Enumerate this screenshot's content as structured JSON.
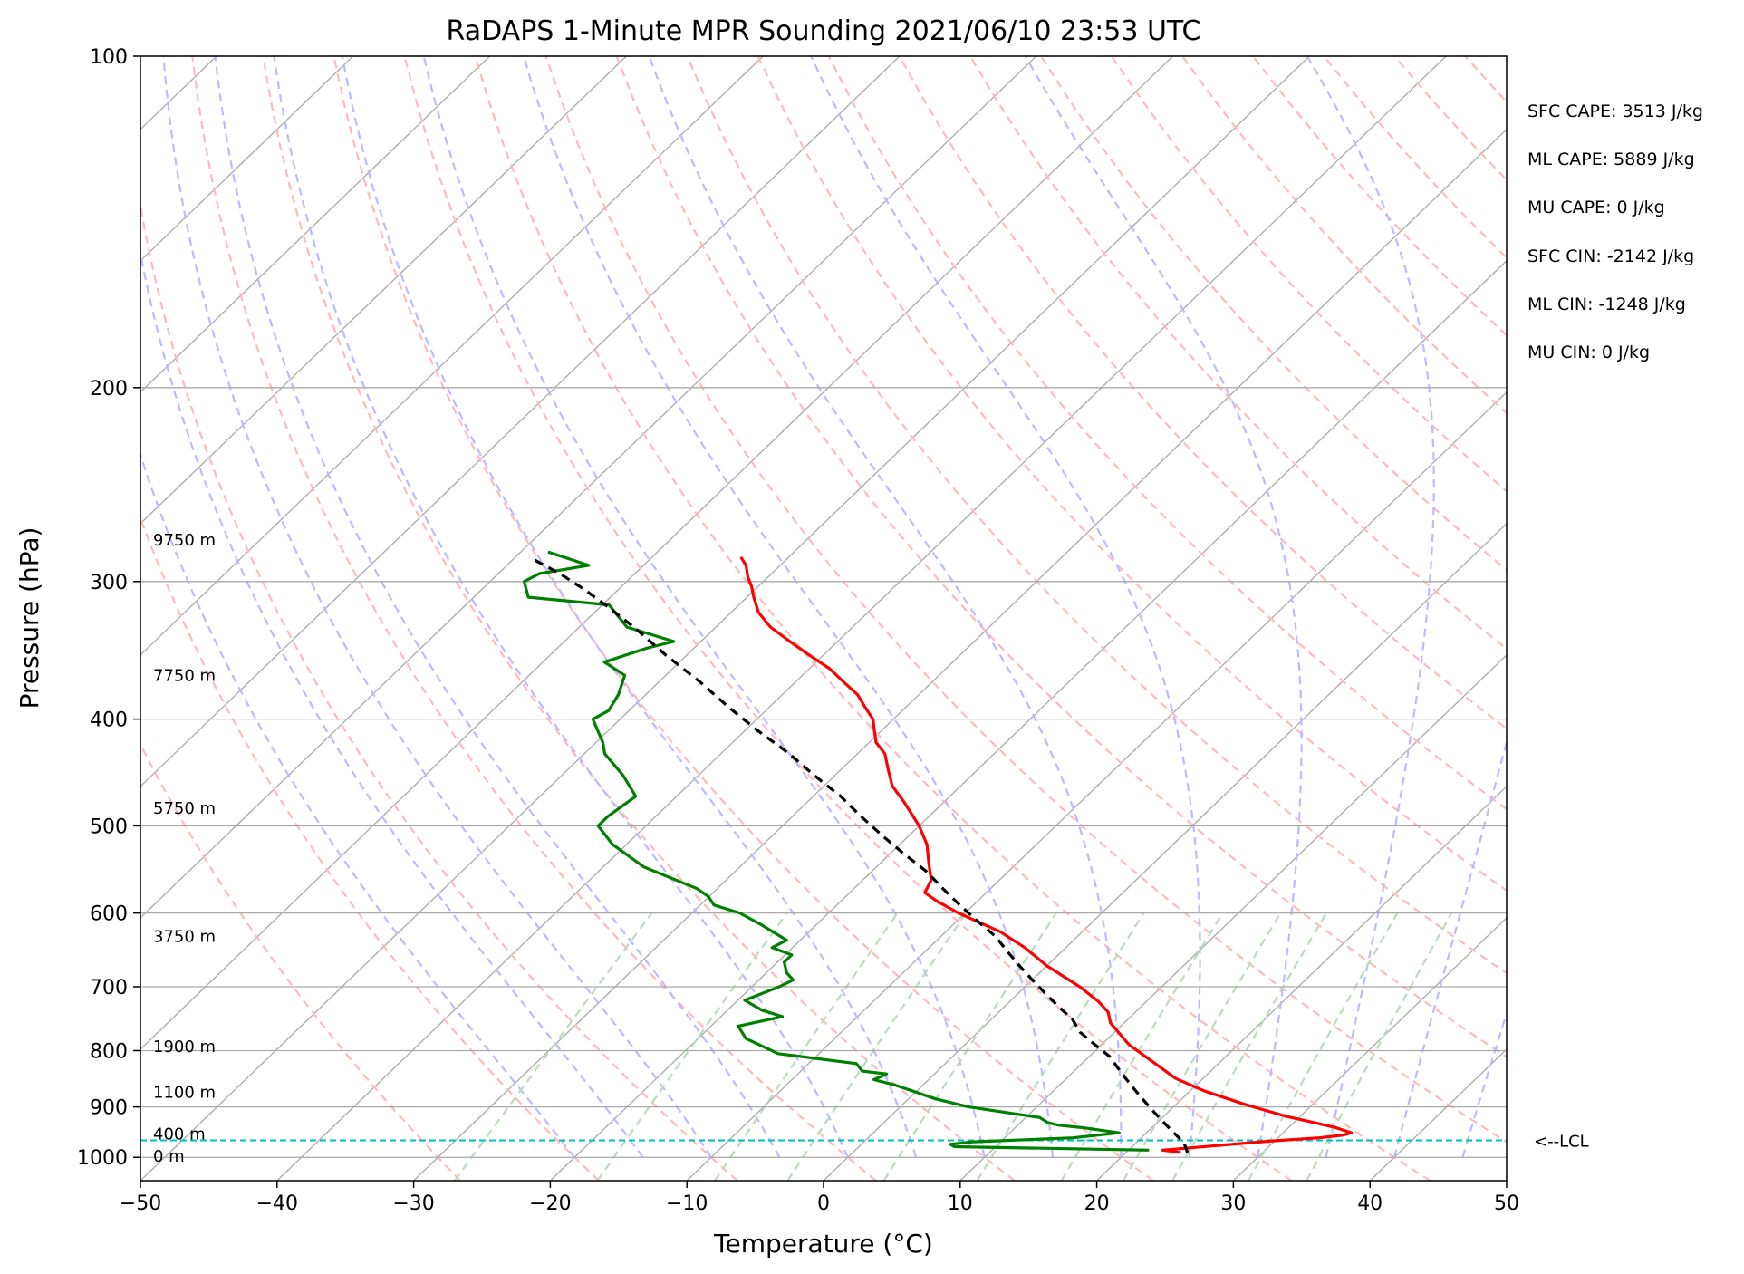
{
  "chart_data": {
    "type": "line",
    "title": "RaDAPS 1-Minute MPR Sounding 2021/06/10 23:53 UTC",
    "xlabel": "Temperature (°C)",
    "ylabel": "Pressure (hPa)",
    "xlim": [
      -50,
      50
    ],
    "ylim": [
      1050,
      100
    ],
    "y_scale": "log",
    "skew_t": true,
    "grid": true,
    "x_ticks": [
      -50,
      -40,
      -30,
      -20,
      -10,
      0,
      10,
      20,
      30,
      40,
      50
    ],
    "x_tick_labels": [
      "−50",
      "−40",
      "−30",
      "−20",
      "−10",
      "0",
      "10",
      "20",
      "30",
      "40",
      "50"
    ],
    "y_ticks": [
      100,
      200,
      300,
      400,
      500,
      600,
      700,
      800,
      900,
      1000
    ],
    "y_tick_labels": [
      "100",
      "200",
      "300",
      "400",
      "500",
      "600",
      "700",
      "800",
      "900",
      "1000"
    ],
    "series": [
      {
        "role": "temperature",
        "color": "#ff0000",
        "points": [
          [
            24.0,
            990
          ],
          [
            22.5,
            985
          ],
          [
            29.5,
            967
          ],
          [
            33.0,
            960
          ],
          [
            34.5,
            955
          ],
          [
            35.0,
            950
          ],
          [
            33.5,
            940
          ],
          [
            31.5,
            930
          ],
          [
            29.0,
            918
          ],
          [
            25.0,
            895
          ],
          [
            21.0,
            870
          ],
          [
            18.0,
            848
          ],
          [
            12.0,
            790
          ],
          [
            9.0,
            755
          ],
          [
            8.0,
            738
          ],
          [
            6.5,
            722
          ],
          [
            4.0,
            700
          ],
          [
            0.0,
            670
          ],
          [
            -3.0,
            645
          ],
          [
            -6.0,
            624
          ],
          [
            -10.5,
            600
          ],
          [
            -13.0,
            585
          ],
          [
            -14.5,
            575
          ],
          [
            -15.0,
            560
          ],
          [
            -16.5,
            540
          ],
          [
            -18.0,
            520
          ],
          [
            -20.0,
            500
          ],
          [
            -23.0,
            475
          ],
          [
            -25.0,
            460
          ],
          [
            -26.5,
            445
          ],
          [
            -28.0,
            430
          ],
          [
            -29.5,
            420
          ],
          [
            -30.5,
            410
          ],
          [
            -31.5,
            400
          ],
          [
            -33.0,
            390
          ],
          [
            -34.5,
            380
          ],
          [
            -36.5,
            370
          ],
          [
            -38.5,
            360
          ],
          [
            -41.0,
            350
          ],
          [
            -43.5,
            340
          ],
          [
            -46.0,
            330
          ],
          [
            -48.0,
            320
          ],
          [
            -49.5,
            310
          ],
          [
            -50.5,
            303
          ],
          [
            -51.5,
            297
          ],
          [
            -52.5,
            290
          ],
          [
            -53.5,
            285
          ]
        ]
      },
      {
        "role": "dewpoint",
        "color": "#008000",
        "points": [
          [
            21.5,
            985
          ],
          [
            7.0,
            978
          ],
          [
            6.5,
            973
          ],
          [
            8.0,
            968
          ],
          [
            15.0,
            960
          ],
          [
            18.0,
            950
          ],
          [
            15.0,
            940
          ],
          [
            13.0,
            935
          ],
          [
            12.0,
            930
          ],
          [
            11.0,
            920
          ],
          [
            5.0,
            900
          ],
          [
            2.0,
            885
          ],
          [
            -2.0,
            860
          ],
          [
            -4.0,
            850
          ],
          [
            -3.5,
            840
          ],
          [
            -5.5,
            835
          ],
          [
            -6.5,
            822
          ],
          [
            -13.0,
            805
          ],
          [
            -16.5,
            780
          ],
          [
            -18.0,
            760
          ],
          [
            -15.5,
            745
          ],
          [
            -17.5,
            735
          ],
          [
            -19.5,
            720
          ],
          [
            -18.0,
            700
          ],
          [
            -17.5,
            690
          ],
          [
            -18.5,
            680
          ],
          [
            -19.5,
            665
          ],
          [
            -19.5,
            655
          ],
          [
            -21.5,
            645
          ],
          [
            -21.0,
            635
          ],
          [
            -24.0,
            615
          ],
          [
            -26.5,
            600
          ],
          [
            -29.0,
            590
          ],
          [
            -30.0,
            580
          ],
          [
            -31.5,
            570
          ],
          [
            -37.0,
            545
          ],
          [
            -41.0,
            520
          ],
          [
            -43.5,
            500
          ],
          [
            -43.5,
            490
          ],
          [
            -43.0,
            470
          ],
          [
            -45.5,
            450
          ],
          [
            -48.5,
            430
          ],
          [
            -49.5,
            420
          ],
          [
            -52.0,
            400
          ],
          [
            -51.5,
            393
          ],
          [
            -52.0,
            380
          ],
          [
            -53.0,
            365
          ],
          [
            -55.5,
            355
          ],
          [
            -53.5,
            345
          ],
          [
            -52.0,
            340
          ],
          [
            -56.5,
            330
          ],
          [
            -58.5,
            320
          ],
          [
            -59.5,
            315
          ],
          [
            -66.0,
            310
          ],
          [
            -67.5,
            300
          ],
          [
            -67.0,
            295
          ],
          [
            -64.0,
            290
          ],
          [
            -68.0,
            282
          ]
        ]
      },
      {
        "role": "parcel",
        "color": "#000000",
        "style": "dashed",
        "points": [
          [
            24.5,
            990
          ],
          [
            23.5,
            970
          ],
          [
            22.0,
            950
          ],
          [
            20.5,
            930
          ],
          [
            19.0,
            910
          ],
          [
            17.5,
            890
          ],
          [
            16.0,
            870
          ],
          [
            14.5,
            850
          ],
          [
            13.0,
            830
          ],
          [
            11.5,
            810
          ],
          [
            9.5,
            790
          ],
          [
            7.5,
            770
          ],
          [
            6.0,
            750
          ],
          [
            4.0,
            730
          ],
          [
            2.0,
            710
          ],
          [
            0.0,
            690
          ],
          [
            -2.0,
            670
          ],
          [
            -4.0,
            650
          ],
          [
            -6.0,
            630
          ],
          [
            -8.5,
            610
          ],
          [
            -11.0,
            590
          ],
          [
            -13.5,
            570
          ],
          [
            -16.0,
            550
          ],
          [
            -19.0,
            530
          ],
          [
            -22.0,
            510
          ],
          [
            -25.0,
            490
          ],
          [
            -28.0,
            470
          ],
          [
            -31.5,
            450
          ],
          [
            -35.0,
            430
          ],
          [
            -39.0,
            410
          ],
          [
            -43.0,
            390
          ],
          [
            -47.0,
            370
          ],
          [
            -51.5,
            350
          ],
          [
            -56.0,
            330
          ],
          [
            -59.0,
            318
          ],
          [
            -62.5,
            305
          ],
          [
            -65.5,
            295
          ],
          [
            -69.0,
            285
          ]
        ]
      }
    ],
    "height_labels": [
      {
        "text": "9750 m",
        "p": 275
      },
      {
        "text": "7750 m",
        "p": 365
      },
      {
        "text": "5750 m",
        "p": 482
      },
      {
        "text": "3750 m",
        "p": 630
      },
      {
        "text": "1900 m",
        "p": 793
      },
      {
        "text": "1100 m",
        "p": 873
      },
      {
        "text": "400 m",
        "p": 952
      },
      {
        "text": "0 m",
        "p": 998
      }
    ],
    "lcl": {
      "pressure": 965,
      "label": "<--LCL",
      "color": "#00bfbf"
    },
    "stats": [
      "SFC CAPE: 3513 J/kg",
      "ML CAPE: 5889 J/kg",
      "MU CAPE: 0 J/kg",
      "SFC CIN: -2142 J/kg",
      "ML CIN: -1248 J/kg",
      "MU CIN: 0 J/kg"
    ],
    "background_lines": {
      "isotherm_color": "#aaaaaa",
      "dry_adiabat_color": "#ffbbbb",
      "moist_adiabat_color": "#bbbbff",
      "mixing_ratio_color": "#b9ddb9"
    }
  }
}
